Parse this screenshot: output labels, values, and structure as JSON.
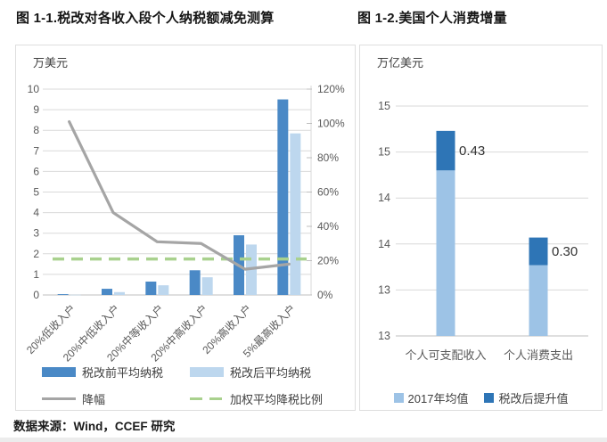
{
  "page": {
    "source_note": "数据来源：Wind，CCEF 研究"
  },
  "chart_data": [
    {
      "type": "bar",
      "subtype": "grouped-bars-with-line",
      "title": "图 1-1.税改对各收入段个人纳税额减免测算",
      "unit_label": "万美元",
      "categories": [
        "20%低收入户",
        "20%中低收入户",
        "20%中等收入户",
        "20%中高收入户",
        "20%高收入户",
        "5%最高收入户"
      ],
      "series": [
        {
          "name": "税改前平均纳税",
          "kind": "bar",
          "axis": "left",
          "color": "#4a89c6",
          "values": [
            0.04,
            0.3,
            0.65,
            1.2,
            2.9,
            9.5
          ]
        },
        {
          "name": "税改后平均纳税",
          "kind": "bar",
          "axis": "left",
          "color": "#bdd7ee",
          "values": [
            0.01,
            0.14,
            0.47,
            0.86,
            2.45,
            7.85
          ]
        },
        {
          "name": "降幅",
          "kind": "line",
          "axis": "right",
          "color": "#a5a5a5",
          "values": [
            1.01,
            0.48,
            0.31,
            0.3,
            0.15,
            0.18
          ]
        },
        {
          "name": "加权平均降税比例",
          "kind": "reference-line",
          "axis": "right",
          "color": "#a9d18e",
          "dashed": true,
          "value": 0.21
        }
      ],
      "left_axis": {
        "min": 0,
        "max": 10,
        "step": 1,
        "tick_labels": [
          "0",
          "1",
          "2",
          "3",
          "4",
          "5",
          "6",
          "7",
          "8",
          "9",
          "10"
        ]
      },
      "right_axis": {
        "min": 0,
        "max": 1.2,
        "step": 0.2,
        "tick_labels": [
          "0%",
          "20%",
          "40%",
          "60%",
          "80%",
          "100%",
          "120%"
        ]
      },
      "grid": true,
      "legend_position": "bottom"
    },
    {
      "type": "bar",
      "subtype": "stacked",
      "title": "图 1-2.美国个人消费增量",
      "unit_label": "万亿美元",
      "categories": [
        "个人可支配收入",
        "个人消费支出"
      ],
      "series": [
        {
          "name": "2017年均值",
          "color": "#9dc3e6",
          "values": [
            14.3,
            13.27
          ]
        },
        {
          "name": "税改后提升值",
          "color": "#2e75b6",
          "values": [
            0.43,
            0.3
          ],
          "data_labels": [
            "0.43",
            "0.30"
          ]
        }
      ],
      "y_axis": {
        "min": 12.5,
        "max": 15,
        "step": 0.5,
        "tick_labels_bottom_up": [
          "13",
          "13",
          "14",
          "14",
          "15",
          "15"
        ]
      },
      "grid": true,
      "legend_position": "bottom"
    }
  ],
  "style": {
    "gridline_color": "#d9d9d9",
    "axis_line_color": "#bfbfbf",
    "tick_text_color": "#595959"
  }
}
